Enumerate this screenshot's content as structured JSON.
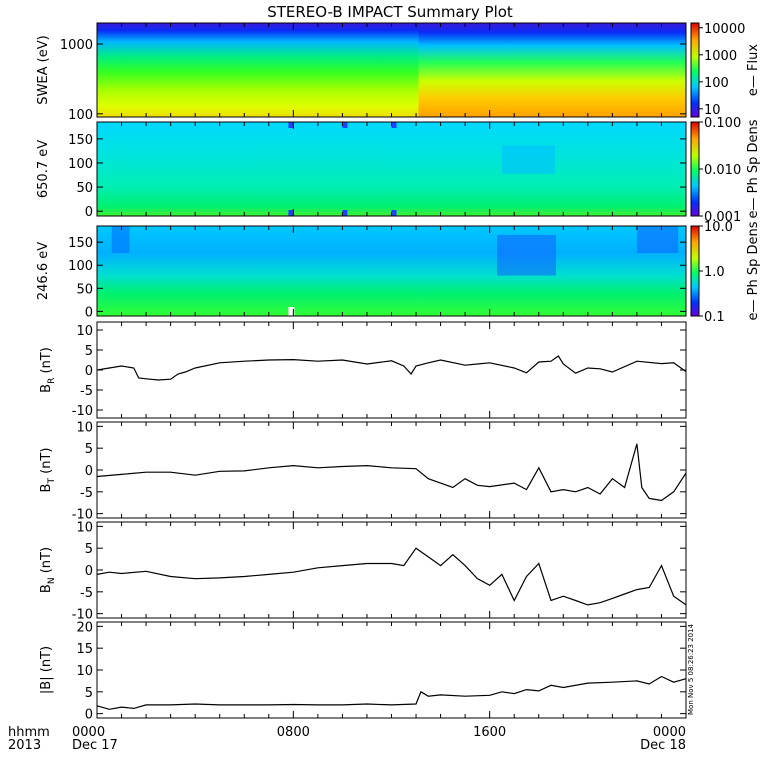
{
  "title": "STEREO-B IMPACT Summary Plot",
  "stamp": "Mon Nov  5 08:26:23 2014",
  "xaxis": {
    "ticks": [
      "0000",
      "0800",
      "1600",
      "0000"
    ],
    "tick_hours": [
      0,
      8,
      16,
      24
    ],
    "row_label": "hhmm",
    "year": "2013",
    "start_date": "Dec 17",
    "end_date": "Dec 18"
  },
  "chart_data": [
    {
      "type": "heatmap",
      "ylabel": "SWEA (eV)",
      "yscale": "log",
      "ylim": [
        90,
        2000
      ],
      "yticks": [
        "1000",
        "100"
      ],
      "colorbar": {
        "label": "e— Flux",
        "scale": "log",
        "range": [
          5,
          15000
        ],
        "ticks": [
          "10000",
          "1000",
          "100",
          "10"
        ]
      }
    },
    {
      "type": "heatmap",
      "ylabel": "650.7 eV",
      "yscale": "linear",
      "ylim": [
        -10,
        185
      ],
      "yticks": [
        "150",
        "100",
        "50",
        "0"
      ],
      "colorbar": {
        "label": "e— Ph Sp Dens",
        "scale": "log",
        "range": [
          0.001,
          0.1
        ],
        "ticks": [
          "0.100",
          "0.010",
          "0.001"
        ]
      }
    },
    {
      "type": "heatmap",
      "ylabel": "246.6 eV",
      "yscale": "linear",
      "ylim": [
        -10,
        185
      ],
      "yticks": [
        "150",
        "100",
        "50",
        "0"
      ],
      "colorbar": {
        "label": "e— Ph Sp Dens",
        "scale": "log",
        "range": [
          0.1,
          10
        ],
        "ticks": [
          "10.0",
          "1.0",
          "0.1"
        ]
      }
    },
    {
      "type": "line",
      "ylabel": "B",
      "sub": "R",
      "unit": " (nT)",
      "ylim": [
        -12,
        12
      ],
      "yticks": [
        10,
        5,
        0,
        -5,
        -10
      ],
      "x": [
        0,
        0.5,
        1,
        1.5,
        1.7,
        2,
        2.5,
        3,
        3.3,
        3.6,
        4,
        5,
        6,
        7,
        8,
        9,
        10,
        11,
        12,
        12.5,
        12.8,
        13,
        13.5,
        14,
        15,
        15.5,
        16,
        17,
        17.5,
        18,
        18.5,
        18.8,
        19,
        19.5,
        20,
        20.5,
        21,
        22,
        23,
        23.5,
        24
      ],
      "y": [
        0,
        0.5,
        1,
        0.5,
        -2,
        -2.2,
        -2.5,
        -2.3,
        -1,
        -0.5,
        0.5,
        1.8,
        2.2,
        2.5,
        2.6,
        2.2,
        2.5,
        1.5,
        2.3,
        1,
        -1,
        1,
        1.8,
        2.5,
        1.2,
        1.5,
        1.8,
        0.5,
        -0.7,
        2,
        2.2,
        3.5,
        1.5,
        -0.8,
        0.5,
        0.3,
        -0.5,
        2.2,
        1.6,
        1.8,
        -0.4
      ]
    },
    {
      "type": "line",
      "ylabel": "B",
      "sub": "T",
      "unit": " (nT)",
      "ylim": [
        -11,
        11
      ],
      "yticks": [
        10,
        5,
        0,
        -5,
        -10
      ],
      "x": [
        0,
        1,
        2,
        3,
        4,
        5,
        6,
        7,
        8,
        9,
        10,
        11,
        12,
        13,
        13.5,
        14,
        14.5,
        15,
        15.5,
        16,
        17,
        17.5,
        18,
        18.5,
        19,
        19.5,
        20,
        20.5,
        21,
        21.5,
        22,
        22.2,
        22.5,
        23,
        23.5,
        24
      ],
      "y": [
        -1.5,
        -1,
        -0.5,
        -0.5,
        -1.2,
        -0.3,
        -0.2,
        0.5,
        1,
        0.5,
        0.8,
        1,
        0.5,
        0.3,
        -2,
        -3,
        -4,
        -2,
        -3.5,
        -3.8,
        -3,
        -4.5,
        0.5,
        -5,
        -4.5,
        -5,
        -4,
        -5.5,
        -2,
        -4,
        6,
        -4,
        -6.5,
        -7,
        -5,
        -0.7
      ]
    },
    {
      "type": "line",
      "ylabel": "B",
      "sub": "N",
      "unit": " (nT)",
      "ylim": [
        -11,
        11
      ],
      "yticks": [
        10,
        5,
        0,
        -5,
        -10
      ],
      "x": [
        0,
        0.5,
        1,
        2,
        3,
        4,
        5,
        6,
        7,
        8,
        9,
        10,
        11,
        12,
        12.5,
        13,
        13.5,
        14,
        14.5,
        15,
        15.5,
        16,
        16.5,
        17,
        17.5,
        18,
        18.5,
        19,
        19.5,
        20,
        20.5,
        21,
        21.5,
        22,
        22.5,
        23,
        23.5,
        24
      ],
      "y": [
        -1,
        -0.5,
        -0.8,
        -0.3,
        -1.5,
        -2,
        -1.8,
        -1.5,
        -1,
        -0.5,
        0.5,
        1,
        1.5,
        1.5,
        1,
        5,
        3,
        1,
        3.5,
        1,
        -2,
        -3.5,
        -1,
        -7,
        -1.5,
        1.5,
        -7,
        -6,
        -7,
        -8,
        -7.5,
        -6.5,
        -5.5,
        -4.5,
        -4,
        1,
        -6,
        -8
      ]
    },
    {
      "type": "line",
      "ylabel": "|B|",
      "sub": "",
      "unit": " (nT)",
      "ylim": [
        -1,
        21
      ],
      "yticks": [
        20,
        15,
        10,
        5,
        0
      ],
      "x": [
        0,
        0.5,
        1,
        1.5,
        2,
        3,
        4,
        5,
        6,
        7,
        8,
        9,
        10,
        11,
        12,
        13,
        13.2,
        13.5,
        14,
        15,
        16,
        16.5,
        17,
        17.5,
        18,
        18.5,
        19,
        20,
        21,
        22,
        22.5,
        23,
        23.5,
        24
      ],
      "y": [
        1.8,
        1,
        1.5,
        1.2,
        2,
        2,
        2.2,
        2,
        2,
        2,
        2.1,
        2,
        2,
        2.2,
        2,
        2.2,
        5,
        4,
        4.3,
        4,
        4.2,
        5,
        4.6,
        5.5,
        5.2,
        6.5,
        6,
        7,
        7.2,
        7.5,
        6.8,
        8.5,
        7.2,
        8
      ]
    }
  ]
}
